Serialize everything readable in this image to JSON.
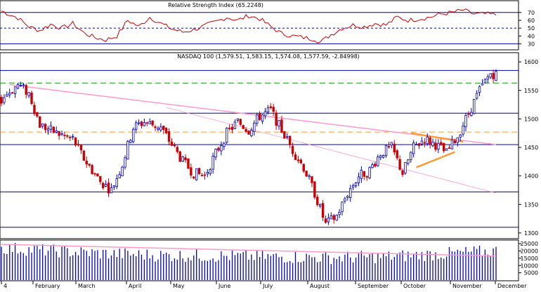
{
  "rsi_panel": {
    "title": "Relative Strength Index (65.2248)",
    "y_ticks": [
      30,
      40,
      50,
      60,
      70
    ],
    "ylim": [
      25,
      77
    ],
    "levels": {
      "upper": 70,
      "middle": 50,
      "lower": 30
    }
  },
  "price_panel": {
    "title": "NASDAQ 100 (1,579.51, 1,583.15, 1,574.08, 1,577.59, -2.84998)",
    "y_ticks": [
      1300,
      1350,
      1400,
      1450,
      1500,
      1550,
      1600
    ],
    "ylim": [
      1290,
      1610
    ]
  },
  "volume_panel": {
    "y_ticks": [
      "25000",
      "20000",
      "15000",
      "10000",
      "5000"
    ],
    "ylim": [
      0,
      27000
    ]
  },
  "x_axis": {
    "labels": [
      "4",
      "February",
      "March",
      "April",
      "May",
      "June",
      "July",
      "August",
      "September",
      "October",
      "November",
      "December"
    ]
  },
  "colors": {
    "up_bar": "#0000cc",
    "down_bar": "#cc0000",
    "rsi_line": "#cc0000",
    "hline": "#0000aa",
    "dotted_level": "#0000aa",
    "green_dash": "#00aa00",
    "orange_dash": "#ff9933",
    "pink_trend": "#ff99cc",
    "orange_trend": "#ff9933",
    "volume_bar": "#0000cc"
  },
  "chart_data": [
    {
      "type": "line",
      "name": "rsi",
      "ylim": [
        25,
        77
      ],
      "grid": false,
      "x_index_range": [
        0,
        180
      ],
      "keypoints": [
        [
          0,
          72
        ],
        [
          6,
          63
        ],
        [
          10,
          52
        ],
        [
          14,
          47
        ],
        [
          18,
          55
        ],
        [
          22,
          50
        ],
        [
          26,
          56
        ],
        [
          30,
          44
        ],
        [
          34,
          38
        ],
        [
          38,
          35
        ],
        [
          42,
          40
        ],
        [
          46,
          60
        ],
        [
          50,
          52
        ],
        [
          54,
          64
        ],
        [
          58,
          56
        ],
        [
          62,
          49
        ],
        [
          66,
          45
        ],
        [
          70,
          48
        ],
        [
          74,
          53
        ],
        [
          78,
          58
        ],
        [
          82,
          64
        ],
        [
          86,
          60
        ],
        [
          90,
          66
        ],
        [
          94,
          62
        ],
        [
          98,
          52
        ],
        [
          102,
          43
        ],
        [
          106,
          40
        ],
        [
          110,
          38
        ],
        [
          114,
          36
        ],
        [
          116,
          32
        ],
        [
          120,
          42
        ],
        [
          124,
          50
        ],
        [
          128,
          54
        ],
        [
          132,
          52
        ],
        [
          136,
          56
        ],
        [
          140,
          54
        ],
        [
          144,
          64
        ],
        [
          148,
          60
        ],
        [
          152,
          62
        ],
        [
          156,
          64
        ],
        [
          160,
          68
        ],
        [
          164,
          70
        ],
        [
          168,
          73
        ],
        [
          172,
          68
        ],
        [
          176,
          68
        ],
        [
          180,
          67
        ]
      ],
      "reference_levels": [
        70,
        50,
        30
      ]
    },
    {
      "type": "candlestick",
      "name": "nasdaq-100",
      "ylim": [
        1290,
        1610
      ],
      "grid": false,
      "x_index_range": [
        0,
        180
      ],
      "keypoints": [
        [
          0,
          1535
        ],
        [
          6,
          1560
        ],
        [
          10,
          1545
        ],
        [
          14,
          1490
        ],
        [
          20,
          1475
        ],
        [
          26,
          1465
        ],
        [
          30,
          1430
        ],
        [
          36,
          1390
        ],
        [
          40,
          1375
        ],
        [
          44,
          1420
        ],
        [
          48,
          1485
        ],
        [
          52,
          1495
        ],
        [
          58,
          1485
        ],
        [
          62,
          1455
        ],
        [
          66,
          1425
        ],
        [
          70,
          1405
        ],
        [
          74,
          1400
        ],
        [
          78,
          1440
        ],
        [
          82,
          1475
        ],
        [
          86,
          1495
        ],
        [
          90,
          1480
        ],
        [
          94,
          1505
        ],
        [
          98,
          1515
        ],
        [
          102,
          1480
        ],
        [
          106,
          1445
        ],
        [
          110,
          1415
        ],
        [
          114,
          1370
        ],
        [
          118,
          1315
        ],
        [
          122,
          1330
        ],
        [
          126,
          1370
        ],
        [
          130,
          1400
        ],
        [
          134,
          1410
        ],
        [
          138,
          1440
        ],
        [
          142,
          1450
        ],
        [
          146,
          1405
        ],
        [
          150,
          1450
        ],
        [
          154,
          1465
        ],
        [
          158,
          1455
        ],
        [
          162,
          1440
        ],
        [
          166,
          1470
        ],
        [
          170,
          1510
        ],
        [
          174,
          1550
        ],
        [
          178,
          1580
        ],
        [
          180,
          1578
        ]
      ],
      "last": {
        "open": 1579.51,
        "high": 1583.15,
        "low": 1574.08,
        "close": 1577.59,
        "change": -2.84998
      },
      "horizontal_levels": [
        1585,
        1510,
        1455,
        1372,
        1310
      ],
      "green_dashed_level": 1563,
      "orange_dashed_level": 1477,
      "trendlines": [
        {
          "color": "pink",
          "from": [
            3,
            1560
          ],
          "to": [
            180,
            1455
          ]
        },
        {
          "color": "pink",
          "from": [
            60,
            1520
          ],
          "to": [
            180,
            1370
          ]
        },
        {
          "color": "orange",
          "from": [
            149,
            1475
          ],
          "to": [
            168,
            1460
          ]
        },
        {
          "color": "orange",
          "from": [
            151,
            1415
          ],
          "to": [
            165,
            1442
          ]
        }
      ]
    },
    {
      "type": "bar",
      "name": "volume",
      "ylim": [
        0,
        27000
      ],
      "grid": false,
      "x_index_range": [
        0,
        180
      ],
      "keypoints": [
        [
          0,
          22000
        ],
        [
          20,
          20000
        ],
        [
          40,
          18000
        ],
        [
          60,
          17000
        ],
        [
          80,
          16500
        ],
        [
          100,
          16000
        ],
        [
          120,
          15500
        ],
        [
          140,
          16000
        ],
        [
          160,
          18000
        ],
        [
          180,
          20000
        ]
      ]
    }
  ]
}
